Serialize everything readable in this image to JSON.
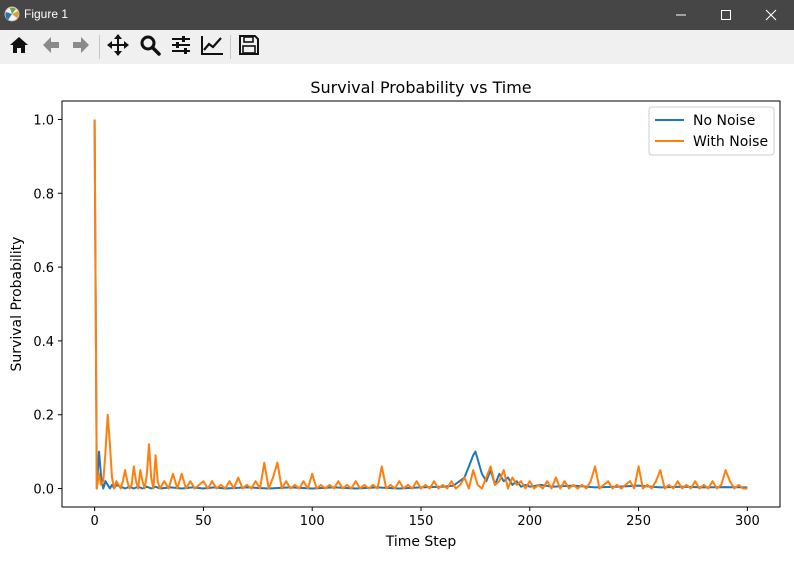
{
  "window": {
    "title": "Figure 1",
    "controls": [
      "minimize",
      "maximize",
      "close"
    ]
  },
  "toolbar": {
    "tools": [
      "home-icon",
      "back-arrow-icon",
      "forward-arrow-icon",
      "pan-icon",
      "zoom-icon",
      "configure-subplots-icon",
      "edit-axis-icon",
      "save-icon"
    ]
  },
  "colors": {
    "no_noise": "#1f77b4",
    "with_noise": "#ff7f0e",
    "titlebar": "#464646",
    "toolbar": "#f0f0f0"
  },
  "chart_data": {
    "type": "line",
    "title": "Survival Probability vs Time",
    "xlabel": "Time Step",
    "ylabel": "Survival Probability",
    "xlim": [
      -15,
      315
    ],
    "ylim": [
      -0.05,
      1.05
    ],
    "xticks": [
      0,
      50,
      100,
      150,
      200,
      250,
      300
    ],
    "xtick_labels": [
      "0",
      "50",
      "100",
      "150",
      "200",
      "250",
      "300"
    ],
    "yticks": [
      0.0,
      0.2,
      0.4,
      0.6,
      0.8,
      1.0
    ],
    "ytick_labels": [
      "0.0",
      "0.2",
      "0.4",
      "0.6",
      "0.8",
      "1.0"
    ],
    "grid": false,
    "legend": "upper-right",
    "series": [
      {
        "name": "No Noise",
        "color": "#1f77b4",
        "x": [
          0,
          1,
          2,
          3,
          4,
          5,
          6,
          7,
          8,
          9,
          10,
          12,
          14,
          16,
          18,
          20,
          22,
          24,
          26,
          28,
          30,
          35,
          40,
          45,
          50,
          55,
          60,
          70,
          80,
          90,
          100,
          110,
          120,
          130,
          140,
          150,
          160,
          165,
          170,
          172,
          174,
          175,
          176,
          178,
          180,
          182,
          184,
          186,
          188,
          190,
          192,
          194,
          196,
          198,
          200,
          205,
          210,
          220,
          230,
          240,
          250,
          260,
          270,
          280,
          290,
          300
        ],
        "y": [
          1.0,
          0.0,
          0.1,
          0.03,
          0.0,
          0.02,
          0.01,
          0.0,
          0.01,
          0.0,
          0.01,
          0.005,
          0.0,
          0.005,
          0.0,
          0.005,
          0.0,
          0.005,
          0.0,
          0.005,
          0.0,
          0.003,
          0.0,
          0.003,
          0.0,
          0.003,
          0.0,
          0.003,
          0.0,
          0.003,
          0.0,
          0.003,
          0.0,
          0.003,
          0.0,
          0.003,
          0.005,
          0.008,
          0.03,
          0.06,
          0.09,
          0.1,
          0.08,
          0.04,
          0.02,
          0.05,
          0.01,
          0.04,
          0.02,
          0.03,
          0.01,
          0.02,
          0.005,
          0.01,
          0.005,
          0.01,
          0.005,
          0.008,
          0.003,
          0.005,
          0.008,
          0.003,
          0.005,
          0.003,
          0.004,
          0.003
        ]
      },
      {
        "name": "With Noise",
        "color": "#ff7f0e",
        "x": [
          0,
          1,
          2,
          3,
          4,
          5,
          6,
          7,
          8,
          9,
          10,
          11,
          12,
          13,
          14,
          15,
          16,
          17,
          18,
          19,
          20,
          21,
          22,
          23,
          24,
          25,
          26,
          27,
          28,
          29,
          30,
          32,
          34,
          36,
          38,
          40,
          42,
          44,
          46,
          48,
          50,
          52,
          54,
          56,
          58,
          60,
          62,
          64,
          66,
          68,
          70,
          72,
          74,
          76,
          78,
          80,
          82,
          84,
          86,
          88,
          90,
          92,
          94,
          96,
          98,
          100,
          102,
          104,
          106,
          108,
          110,
          112,
          114,
          116,
          118,
          120,
          122,
          124,
          126,
          128,
          130,
          132,
          134,
          136,
          138,
          140,
          142,
          144,
          146,
          148,
          150,
          152,
          154,
          156,
          158,
          160,
          162,
          164,
          166,
          168,
          170,
          172,
          174,
          176,
          178,
          180,
          182,
          184,
          186,
          188,
          190,
          192,
          194,
          196,
          198,
          200,
          202,
          204,
          206,
          208,
          210,
          212,
          214,
          216,
          218,
          220,
          222,
          224,
          226,
          228,
          230,
          232,
          234,
          236,
          238,
          240,
          242,
          244,
          246,
          248,
          250,
          252,
          254,
          256,
          258,
          260,
          262,
          264,
          266,
          268,
          270,
          272,
          274,
          276,
          278,
          280,
          282,
          284,
          286,
          288,
          290,
          292,
          294,
          296,
          298,
          300
        ],
        "y": [
          1.0,
          0.0,
          0.04,
          0.01,
          0.02,
          0.1,
          0.2,
          0.12,
          0.03,
          0.0,
          0.02,
          0.01,
          0.0,
          0.02,
          0.05,
          0.02,
          0.0,
          0.01,
          0.06,
          0.02,
          0.0,
          0.05,
          0.02,
          0.0,
          0.04,
          0.12,
          0.03,
          0.0,
          0.09,
          0.02,
          0.0,
          0.02,
          0.0,
          0.04,
          0.0,
          0.04,
          0.0,
          0.02,
          0.0,
          0.01,
          0.02,
          0.0,
          0.02,
          0.0,
          0.01,
          0.0,
          0.02,
          0.0,
          0.03,
          0.0,
          0.01,
          0.0,
          0.02,
          0.0,
          0.07,
          0.0,
          0.03,
          0.07,
          0.0,
          0.02,
          0.0,
          0.01,
          0.0,
          0.02,
          0.0,
          0.04,
          0.0,
          0.01,
          0.0,
          0.01,
          0.0,
          0.02,
          0.0,
          0.01,
          0.0,
          0.02,
          0.0,
          0.01,
          0.0,
          0.01,
          0.0,
          0.06,
          0.0,
          0.01,
          0.0,
          0.02,
          0.0,
          0.01,
          0.0,
          0.02,
          0.0,
          0.01,
          0.0,
          0.02,
          0.0,
          0.01,
          0.0,
          0.02,
          0.0,
          0.01,
          0.03,
          0.0,
          0.05,
          0.01,
          0.0,
          0.03,
          0.06,
          0.01,
          0.02,
          0.05,
          0.0,
          0.03,
          0.01,
          0.02,
          0.0,
          0.02,
          0.0,
          0.01,
          0.0,
          0.02,
          0.0,
          0.03,
          0.0,
          0.02,
          0.0,
          0.01,
          0.0,
          0.01,
          0.0,
          0.02,
          0.06,
          0.0,
          0.01,
          0.02,
          0.0,
          0.01,
          0.0,
          0.01,
          0.02,
          0.0,
          0.06,
          0.0,
          0.01,
          0.0,
          0.02,
          0.05,
          0.0,
          0.01,
          0.0,
          0.02,
          0.0,
          0.01,
          0.0,
          0.02,
          0.0,
          0.01,
          0.0,
          0.02,
          0.0,
          0.01,
          0.05,
          0.02,
          0.0,
          0.01,
          0.0,
          0.0
        ]
      }
    ]
  }
}
